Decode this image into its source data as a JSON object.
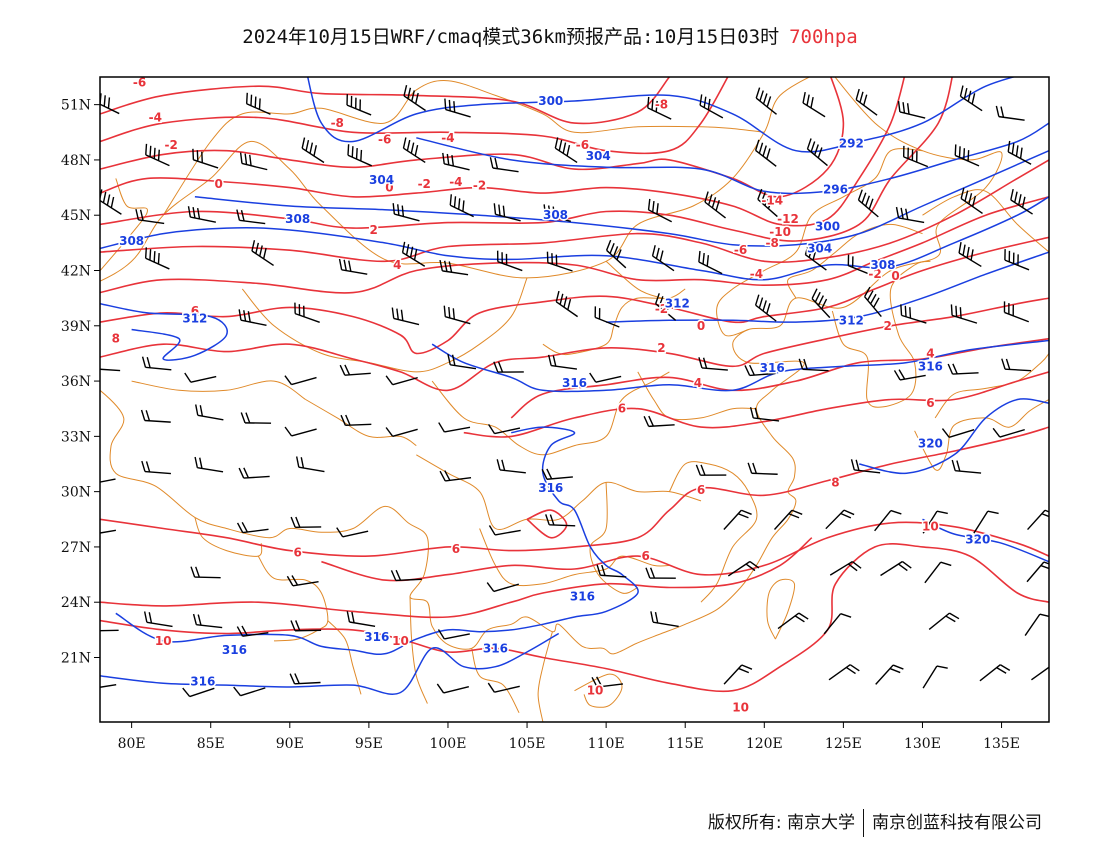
{
  "title": {
    "main": "2024年10月15日WRF/cmaq模式36km预报产品:10月15日03时",
    "level": "700hpa"
  },
  "axes": {
    "lat_labels": [
      "51N",
      "48N",
      "45N",
      "42N",
      "39N",
      "36N",
      "33N",
      "30N",
      "27N",
      "24N",
      "21N"
    ],
    "lon_labels": [
      "80E",
      "85E",
      "90E",
      "95E",
      "100E",
      "105E",
      "110E",
      "115E",
      "120E",
      "125E",
      "130E",
      "135E"
    ],
    "lon_range": [
      78,
      138
    ],
    "lat_range": [
      17.5,
      52.5
    ]
  },
  "colors": {
    "temperature": "#e8333a",
    "geopotential": "#1a3fe0",
    "borders": "#e08a2a",
    "wind": "#000000"
  },
  "contour_labels": {
    "temperature": [
      {
        "text": "-6",
        "lon": 80.5,
        "lat": 52.2
      },
      {
        "text": "-4",
        "lon": 81.5,
        "lat": 50.3
      },
      {
        "text": "-2",
        "lon": 82.5,
        "lat": 48.8
      },
      {
        "text": "0",
        "lon": 85.5,
        "lat": 46.7
      },
      {
        "text": "-8",
        "lon": 93,
        "lat": 50
      },
      {
        "text": "-6",
        "lon": 96,
        "lat": 49.1
      },
      {
        "text": "-4",
        "lon": 100,
        "lat": 49.2
      },
      {
        "text": "-6",
        "lon": 108.5,
        "lat": 48.8
      },
      {
        "text": "-8",
        "lon": 113.5,
        "lat": 51
      },
      {
        "text": "0",
        "lon": 96.3,
        "lat": 46.5
      },
      {
        "text": "-2",
        "lon": 98.5,
        "lat": 46.7
      },
      {
        "text": "-4",
        "lon": 100.5,
        "lat": 46.8
      },
      {
        "text": "-2",
        "lon": 102,
        "lat": 46.6
      },
      {
        "text": "2",
        "lon": 95.3,
        "lat": 44.2
      },
      {
        "text": "4",
        "lon": 96.8,
        "lat": 42.3
      },
      {
        "text": "6",
        "lon": 84,
        "lat": 39.8
      },
      {
        "text": "8",
        "lon": 79,
        "lat": 38.3
      },
      {
        "text": "-14",
        "lon": 120.5,
        "lat": 45.8
      },
      {
        "text": "-12",
        "lon": 121.5,
        "lat": 44.8
      },
      {
        "text": "-10",
        "lon": 121,
        "lat": 44.1
      },
      {
        "text": "-8",
        "lon": 120.5,
        "lat": 43.5
      },
      {
        "text": "-6",
        "lon": 118.5,
        "lat": 43.1
      },
      {
        "text": "-4",
        "lon": 119.5,
        "lat": 41.8
      },
      {
        "text": "-2",
        "lon": 127,
        "lat": 41.8
      },
      {
        "text": "0",
        "lon": 128.3,
        "lat": 41.7
      },
      {
        "text": "-2",
        "lon": 113.5,
        "lat": 39.9
      },
      {
        "text": "0",
        "lon": 116,
        "lat": 39
      },
      {
        "text": "2",
        "lon": 113.5,
        "lat": 37.8
      },
      {
        "text": "2",
        "lon": 127.8,
        "lat": 39
      },
      {
        "text": "4",
        "lon": 115.8,
        "lat": 35.9
      },
      {
        "text": "4",
        "lon": 130.5,
        "lat": 37.5
      },
      {
        "text": "6",
        "lon": 111,
        "lat": 34.5
      },
      {
        "text": "6",
        "lon": 130.5,
        "lat": 34.8
      },
      {
        "text": "6",
        "lon": 116,
        "lat": 30.1
      },
      {
        "text": "6",
        "lon": 100.5,
        "lat": 26.9
      },
      {
        "text": "6",
        "lon": 90.5,
        "lat": 26.7
      },
      {
        "text": "6",
        "lon": 112.5,
        "lat": 26.5
      },
      {
        "text": "8",
        "lon": 124.5,
        "lat": 30.5
      },
      {
        "text": "10",
        "lon": 130.5,
        "lat": 28.1
      },
      {
        "text": "10",
        "lon": 82,
        "lat": 21.9
      },
      {
        "text": "10",
        "lon": 97,
        "lat": 21.9
      },
      {
        "text": "10",
        "lon": 109.3,
        "lat": 19.2
      },
      {
        "text": "10",
        "lon": 118.5,
        "lat": 18.3
      }
    ],
    "geopotential": [
      {
        "text": "300",
        "lon": 106.5,
        "lat": 51.2
      },
      {
        "text": "304",
        "lon": 109.5,
        "lat": 48.2
      },
      {
        "text": "292",
        "lon": 125.5,
        "lat": 48.9
      },
      {
        "text": "296",
        "lon": 124.5,
        "lat": 46.4
      },
      {
        "text": "304",
        "lon": 95.8,
        "lat": 46.9
      },
      {
        "text": "308",
        "lon": 90.5,
        "lat": 44.8
      },
      {
        "text": "308",
        "lon": 106.8,
        "lat": 45
      },
      {
        "text": "300",
        "lon": 124,
        "lat": 44.4
      },
      {
        "text": "304",
        "lon": 123.5,
        "lat": 43.2
      },
      {
        "text": "308",
        "lon": 127.5,
        "lat": 42.3
      },
      {
        "text": "312",
        "lon": 114.5,
        "lat": 40.2
      },
      {
        "text": "312",
        "lon": 125.5,
        "lat": 39.3
      },
      {
        "text": "308",
        "lon": 80,
        "lat": 43.6
      },
      {
        "text": "312",
        "lon": 84,
        "lat": 39.4
      },
      {
        "text": "316",
        "lon": 108,
        "lat": 35.9
      },
      {
        "text": "316",
        "lon": 120.5,
        "lat": 36.7
      },
      {
        "text": "316",
        "lon": 130.5,
        "lat": 36.8
      },
      {
        "text": "316",
        "lon": 106.5,
        "lat": 30.2
      },
      {
        "text": "320",
        "lon": 130.5,
        "lat": 32.6
      },
      {
        "text": "320",
        "lon": 133.5,
        "lat": 27.4
      },
      {
        "text": "316",
        "lon": 108.5,
        "lat": 24.3
      },
      {
        "text": "316",
        "lon": 86.5,
        "lat": 21.4
      },
      {
        "text": "316",
        "lon": 95.5,
        "lat": 22.1
      },
      {
        "text": "316",
        "lon": 103,
        "lat": 21.5
      },
      {
        "text": "316",
        "lon": 84.5,
        "lat": 19.7
      }
    ]
  },
  "footer": {
    "copyright": "版权所有: 南京大学",
    "company": "南京创蓝科技有限公司"
  }
}
